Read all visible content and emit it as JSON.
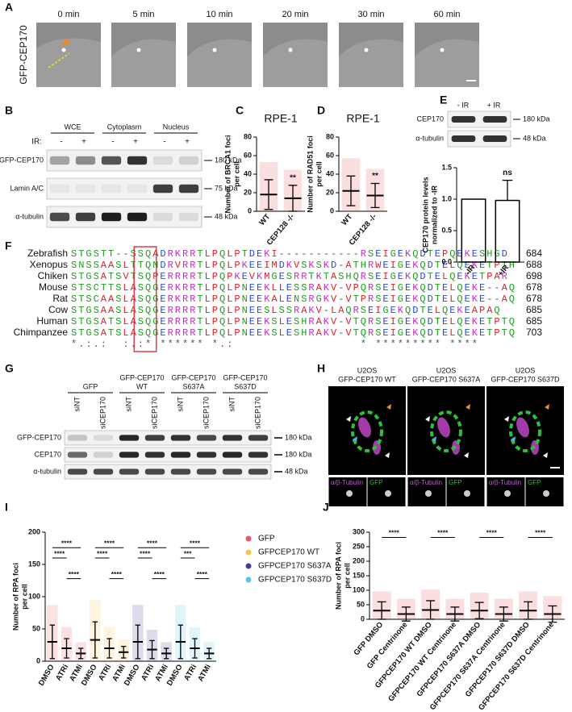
{
  "panel_a": {
    "label": "A",
    "protein": "GFP-CEP170",
    "timepoints": [
      "0 min",
      "5 min",
      "10 min",
      "20 min",
      "30 min",
      "60 min"
    ]
  },
  "panel_b": {
    "label": "B",
    "fractions": [
      "WCE",
      "Cytoplasm",
      "Nucleus"
    ],
    "ir_label": "IR:",
    "ir_states": [
      "-",
      "+"
    ],
    "rows": [
      {
        "name": "GFP-CEP170",
        "marker": "180 kDa"
      },
      {
        "name": "Lamin A/C",
        "marker": "75 kDa"
      },
      {
        "name": "α-tubulin",
        "marker": "48 kDa"
      }
    ]
  },
  "panel_e_blot": {
    "conditions": [
      "- IR",
      "+ IR"
    ],
    "rows": [
      {
        "name": "CEP170",
        "marker": "180 kDa"
      },
      {
        "name": "α-tubulin",
        "marker": "48 kDa"
      }
    ]
  },
  "panel_f": {
    "label": "F",
    "rows": [
      {
        "species": "Zebrafish",
        "sequence": "STGSTT--SSQADRKRRTLPQLPTDEKI-----------RSEIGEKQDTEPQEKESHGD",
        "end": 684
      },
      {
        "species": "Xenopus",
        "sequence": "SNSSAASLTTQNDRVRRTLPQLPKEEIMDKVSKSKD-ATHRWEIGEKQDTELQEKETPTH",
        "end": 688
      },
      {
        "species": "Chiken",
        "sequence": "STGSATSVTSQPERRRRTLPQPKEVKMGESRRTKTASHQRSEIGEKQDTELQEKETPAR",
        "end": 698
      },
      {
        "species": "Mouse",
        "sequence": "STSCTTSLASQGERKRRTLPQLPNEEKLLESSRAKV-VPQRSEIGEKQDTELQEKE--AQ",
        "end": 678
      },
      {
        "species": "Rat",
        "sequence": "STSCAASLASQGERKRRTLPQLPNEEKALENSRGKV-VTPRSEIGEKQDTELQEKE--AQ",
        "end": 678
      },
      {
        "species": "Cow",
        "sequence": "STGSAASLASQGERRRRTLPQLPNEESLSSRAKV-LAQRSEIGEKQDTELQEKEAPAQ",
        "end": 685
      },
      {
        "species": "Human",
        "sequence": "STGSATSLASQGERRRRTLPQLPNEEKSLESHRAKV-VTQRSEIGEKQDTELQEKETPTQ",
        "end": 685
      },
      {
        "species": "Chimpanzee",
        "sequence": "STGSATSLASQGERRRRTLPQLPNEEKSLESHRAKV-VTQRSEIGEKQDTELQEKETPTQ",
        "end": 703
      }
    ],
    "consensus": "*.:.:  :.:* ****** *.:                 * ********* ****"
  },
  "panel_g": {
    "label": "G",
    "groups": [
      [
        "GFP"
      ],
      [
        "GFP-CEP170",
        "WT"
      ],
      [
        "GFP-CEP170",
        "S637A"
      ],
      [
        "GFP-CEP170",
        "S637D"
      ]
    ],
    "lanes": [
      "siNT",
      "siCEP170"
    ],
    "rows": [
      {
        "name": "GFP-CEP170",
        "marker": "180 kDa"
      },
      {
        "name": "CEP170",
        "marker": "180 kDa"
      },
      {
        "name": "α-tubulin",
        "marker": "48 kDa"
      }
    ]
  },
  "panel_h": {
    "label": "H",
    "cell_line": "U2OS",
    "constructs": [
      "GFP-CEP170 WT",
      "GFP-CEP170 S637A",
      "GFP-CEP170 S637D"
    ],
    "channels": [
      "α/β-Tubulin",
      "GFP"
    ]
  },
  "chart_data": [
    {
      "label": "C",
      "type": "dot",
      "title": "RPE-1",
      "ylabel": [
        "Number of BRCA1 foci",
        "per cell"
      ],
      "categories": [
        "WT",
        "CEP128 -/-"
      ],
      "values": [
        18,
        14
      ],
      "errors": [
        16,
        14
      ],
      "color": "#e8474e",
      "ylim": [
        0,
        80
      ],
      "yticks": [
        0,
        20,
        40,
        60,
        80
      ],
      "annotations": [
        "**"
      ]
    },
    {
      "label": "D",
      "type": "dot",
      "title": "RPE-1",
      "ylabel": [
        "Number of RAD51 foci",
        "per cell"
      ],
      "categories": [
        "WT",
        "CEP128 -/-"
      ],
      "values": [
        22,
        17
      ],
      "errors": [
        16,
        13
      ],
      "color": "#e8474e",
      "ylim": [
        0,
        80
      ],
      "yticks": [
        0,
        20,
        40,
        60,
        80
      ],
      "annotations": [
        "**"
      ]
    },
    {
      "label": "E",
      "type": "bar",
      "ylabel": [
        "CEP170 protein levels",
        "normalized to -IR"
      ],
      "categories": [
        "-IR",
        "+IR"
      ],
      "values": [
        1.0,
        0.98
      ],
      "errors": [
        null,
        0.32
      ],
      "color": "#000000",
      "ylim": [
        0,
        1.5
      ],
      "yticks": [
        {
          "value": 0,
          "label": "0.0"
        },
        0.5,
        {
          "value": 1,
          "label": "1.0"
        },
        1.5
      ],
      "annotations": [
        "ns"
      ]
    },
    {
      "label": "I",
      "type": "dot",
      "ylabel": [
        "Number of RPA foci",
        "per cell"
      ],
      "categories": [
        "DMSO",
        "ATRi",
        "ATMi",
        "DMSO",
        "ATRi",
        "ATMi",
        "DMSO",
        "ATRi",
        "ATMi",
        "DMSO",
        "ATRi",
        "ATMi"
      ],
      "series": [
        {
          "name": "GFP",
          "color": "#f0595e",
          "values": [
            30,
            20,
            12,
            null,
            null,
            null,
            null,
            null,
            null,
            null,
            null,
            null
          ],
          "errors": [
            26,
            15,
            8,
            null,
            null,
            null,
            null,
            null,
            null,
            null,
            null,
            null
          ]
        },
        {
          "name": "GFPCEP170 WT",
          "color": "#f7c244",
          "values": [
            null,
            null,
            null,
            33,
            20,
            14,
            null,
            null,
            null,
            null,
            null,
            null
          ],
          "errors": [
            null,
            null,
            null,
            28,
            15,
            9,
            null,
            null,
            null,
            null,
            null,
            null
          ]
        },
        {
          "name": "GFPCEP170 S637A",
          "color": "#4a3a9a",
          "values": [
            null,
            null,
            null,
            null,
            null,
            null,
            30,
            18,
            12,
            null,
            null,
            null
          ],
          "errors": [
            null,
            null,
            null,
            null,
            null,
            null,
            26,
            14,
            8,
            null,
            null,
            null
          ]
        },
        {
          "name": "GFPCEP170 S637D",
          "color": "#55c6ea",
          "values": [
            null,
            null,
            null,
            null,
            null,
            null,
            null,
            null,
            null,
            30,
            20,
            12
          ],
          "errors": [
            null,
            null,
            null,
            null,
            null,
            null,
            null,
            null,
            null,
            26,
            15,
            8
          ]
        }
      ],
      "ylim": [
        0,
        200
      ],
      "yticks": [
        0,
        50,
        100,
        150,
        200
      ],
      "legend": "right",
      "annotations": [
        "****",
        "****",
        "****",
        "****",
        "****",
        "****",
        "****",
        "****",
        "****",
        "****",
        "***",
        "****"
      ]
    },
    {
      "label": "J",
      "type": "dot",
      "ylabel": [
        "Number of RPA foci",
        "per cell"
      ],
      "categories": [
        "GFP DMSO",
        "GFP Centrinone",
        "GFPCEP170 WT DMSO",
        "GFPCEP170 WT Centrinone",
        "GFPCEP170 S637A DMSO",
        "GFPCEP170 S637A Centrinone",
        "GFPCEP170 S637D DMSO",
        "GFPCEP170 S637D Centrinone"
      ],
      "values": [
        30,
        18,
        32,
        18,
        30,
        18,
        30,
        18
      ],
      "errors": [
        30,
        24,
        32,
        24,
        28,
        24,
        30,
        28
      ],
      "color": "#e8474e",
      "ylim": [
        0,
        300
      ],
      "yticks": [
        0,
        50,
        100,
        150,
        200,
        250,
        300
      ],
      "annotations": [
        "****",
        "****",
        "****",
        "****"
      ]
    }
  ]
}
